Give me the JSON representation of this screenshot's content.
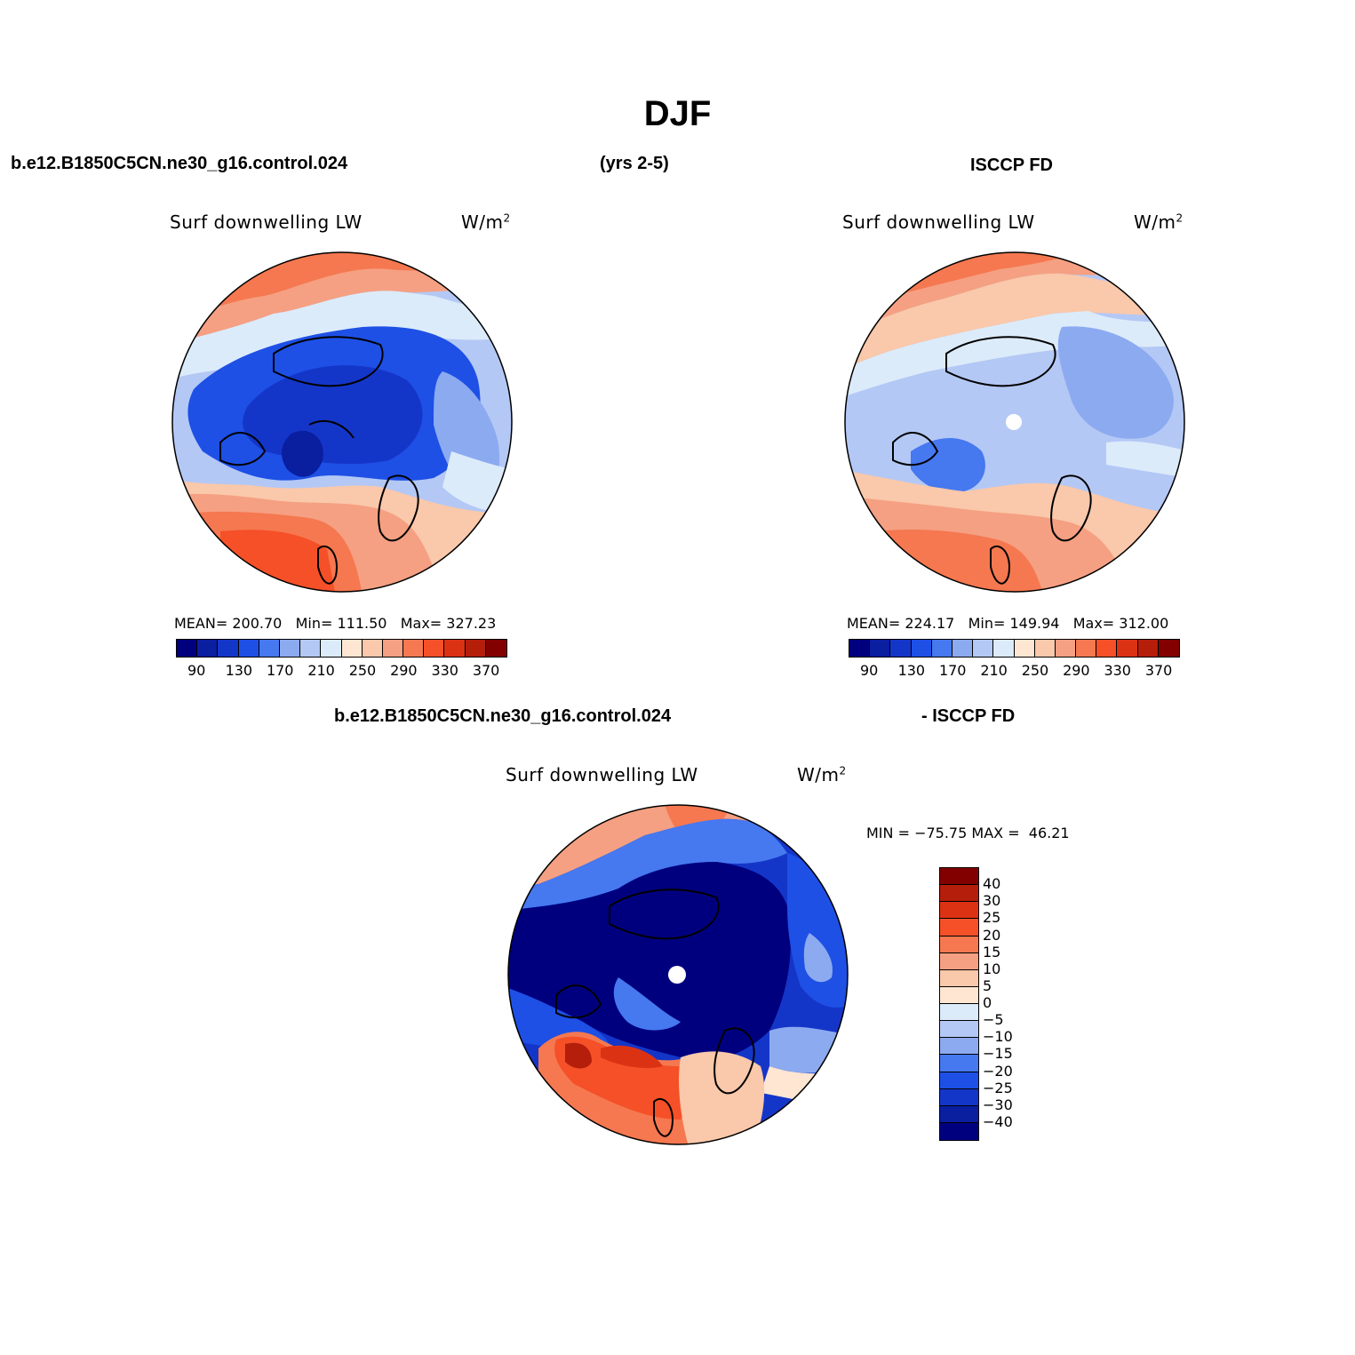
{
  "chart_data": [
    {
      "type": "heatmap",
      "projection": "north polar stereographic",
      "title": "Surf downwelling LW",
      "units": "W/m2",
      "case": "b.e12.B1850C5CN.ne30_g16.control.024",
      "stats": {
        "mean_label": "MEAN=",
        "mean": "200.70",
        "min_label": "Min=",
        "min": "111.50",
        "max_label": "Max=",
        "max": "327.23"
      },
      "colorbar_ticks": [
        "90",
        "130",
        "170",
        "210",
        "250",
        "290",
        "330",
        "370"
      ]
    },
    {
      "type": "heatmap",
      "projection": "north polar stereographic",
      "title": "Surf downwelling LW",
      "units": "W/m2",
      "case": "ISCCP FD",
      "stats": {
        "mean_label": "MEAN=",
        "mean": "224.17",
        "min_label": "Min=",
        "min": "149.94",
        "max_label": "Max=",
        "max": "312.00"
      },
      "colorbar_ticks": [
        "90",
        "130",
        "170",
        "210",
        "250",
        "290",
        "330",
        "370"
      ]
    },
    {
      "type": "heatmap",
      "projection": "north polar stereographic",
      "title": "Surf downwelling LW",
      "units": "W/m2",
      "case": "b.e12.B1850C5CN.ne30_g16.control.024 - ISCCP FD",
      "stats": {
        "min_label": "MIN =",
        "min": "−75.75",
        "max_label": "MAX =",
        "max": "46.21"
      },
      "colorbar_ticks": [
        "40",
        "30",
        "25",
        "20",
        "15",
        "10",
        "5",
        "0",
        "−5",
        "−10",
        "−15",
        "−20",
        "−25",
        "−30",
        "−40"
      ]
    }
  ],
  "header": {
    "title": "DJF",
    "left": "b.e12.B1850C5CN.ne30_g16.control.024",
    "center": "(yrs 2-5)",
    "right": "ISCCP FD",
    "diff_left": "b.e12.B1850C5CN.ne30_g16.control.024",
    "diff_right": "- ISCCP FD"
  },
  "labels": {
    "field": "Surf downwelling LW",
    "units_base": "W/m",
    "units_exp": "2"
  },
  "colors": {
    "abs_scale": [
      "#00007f",
      "#0a1ea0",
      "#1436c8",
      "#1e50e6",
      "#4678f0",
      "#8caaf0",
      "#b4c8f5",
      "#dcebfa",
      "#ffe6d2",
      "#fac8aa",
      "#f5a082",
      "#f57850",
      "#f55028",
      "#dc3214",
      "#b41e0a",
      "#820000"
    ],
    "diff_scale_top_to_bottom": [
      "#820000",
      "#b41e0a",
      "#dc3214",
      "#f55028",
      "#f57850",
      "#f5a082",
      "#fac8aa",
      "#ffe6d2",
      "#dcebfa",
      "#b4c8f5",
      "#8caaf0",
      "#4678f0",
      "#1e50e6",
      "#1436c8",
      "#0a1ea0",
      "#00007f"
    ]
  }
}
